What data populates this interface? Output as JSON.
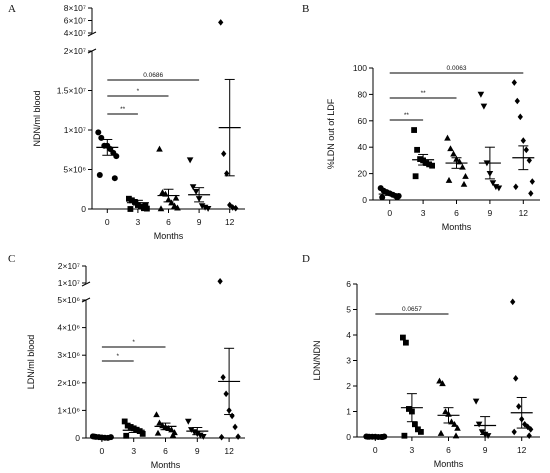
{
  "chart_data": [
    {
      "panel": "A",
      "type": "scatter",
      "xlabel": "Months",
      "ylabel": "NDN/ml blood",
      "categories": [
        "0",
        "3",
        "6",
        "9",
        "12"
      ],
      "yticks_main": [
        "0",
        "5×10⁶",
        "1×10⁷",
        "1.5×10⁷",
        "2×10⁷"
      ],
      "yticks_break": [
        "4×10⁷",
        "6×10⁷",
        "8×10⁷"
      ],
      "ylim_main": [
        0,
        20000000
      ],
      "ylim_break": [
        40000000,
        80000000
      ],
      "markers": [
        "circle",
        "square",
        "triangle-up",
        "triangle-down",
        "diamond"
      ],
      "points": [
        [
          9700000,
          9000000,
          8000000,
          8000000,
          7600000,
          7100000,
          6700000,
          4300000,
          3900000
        ],
        [
          1300000,
          1100000,
          900000,
          500000,
          300000,
          100000,
          50000,
          0,
          400000
        ],
        [
          7600000,
          2100000,
          1900000,
          1200000,
          800000,
          400000,
          150000,
          50000,
          1400000
        ],
        [
          6200000,
          2800000,
          2200000,
          1300000,
          400000,
          200000,
          50000
        ],
        [
          57000000,
          7000000,
          4500000,
          500000,
          200000,
          100000
        ]
      ],
      "mean": [
        7800000,
        800000,
        1700000,
        1800000,
        10300000
      ],
      "sem": [
        1000000,
        300000,
        800000,
        900000,
        6100000
      ],
      "comparisons": [
        {
          "from": "0",
          "to": "3",
          "label": "**"
        },
        {
          "from": "0",
          "to": "6",
          "label": "*"
        },
        {
          "from": "0",
          "to": "9",
          "label": "0.0686"
        }
      ]
    },
    {
      "panel": "B",
      "type": "scatter",
      "xlabel": "Months",
      "ylabel": "%LDN out of LDF",
      "categories": [
        "0",
        "3",
        "6",
        "9",
        "12"
      ],
      "yticks": [
        "0",
        "20",
        "40",
        "60",
        "80",
        "100"
      ],
      "ylim": [
        0,
        100
      ],
      "markers": [
        "circle",
        "square",
        "triangle-up",
        "triangle-down",
        "diamond"
      ],
      "points": [
        [
          9,
          7,
          6,
          5,
          4,
          3,
          3,
          2,
          2
        ],
        [
          53,
          38,
          31,
          30,
          28,
          27,
          26,
          18
        ],
        [
          47,
          39,
          35,
          31,
          29,
          25,
          18,
          15,
          12
        ],
        [
          80,
          71,
          28,
          20,
          13,
          10,
          9
        ],
        [
          89,
          75,
          63,
          45,
          38,
          30,
          14,
          10,
          5
        ]
      ],
      "mean": [
        4.5,
        30.5,
        28,
        28,
        32
      ],
      "sem": [
        1,
        4,
        4,
        12,
        9
      ],
      "comparisons": [
        {
          "from": "0",
          "to": "3",
          "label": "**"
        },
        {
          "from": "0",
          "to": "6",
          "label": "**"
        },
        {
          "from": "0",
          "to": "12",
          "label": "0.0063"
        }
      ]
    },
    {
      "panel": "C",
      "type": "scatter",
      "xlabel": "Months",
      "ylabel": "LDN/ml blood",
      "categories": [
        "0",
        "3",
        "6",
        "9",
        "12"
      ],
      "yticks_main": [
        "0",
        "1×10⁶",
        "2×10⁶",
        "3×10⁶",
        "4×10⁶",
        "5×10⁶"
      ],
      "yticks_break": [
        "1×10⁷",
        "2×10⁷"
      ],
      "ylim_main": [
        0,
        5000000
      ],
      "ylim_break": [
        10000000,
        20000000
      ],
      "markers": [
        "circle",
        "square",
        "triangle-up",
        "triangle-down",
        "diamond"
      ],
      "points": [
        [
          60000,
          40000,
          30000,
          20000,
          10000,
          5000,
          30000,
          50000
        ],
        [
          600000,
          450000,
          400000,
          350000,
          300000,
          250000,
          150000,
          80000
        ],
        [
          850000,
          550000,
          450000,
          400000,
          350000,
          300000,
          200000,
          180000,
          100000
        ],
        [
          600000,
          300000,
          220000,
          150000,
          100000,
          50000
        ],
        [
          11000000,
          2200000,
          1600000,
          1000000,
          800000,
          400000,
          50000,
          30000
        ]
      ],
      "mean": [
        30000,
        280000,
        420000,
        250000,
        2050000
      ],
      "sem": [
        10000,
        80000,
        120000,
        130000,
        1200000
      ],
      "comparisons": [
        {
          "from": "0",
          "to": "3",
          "label": "*"
        },
        {
          "from": "0",
          "to": "6",
          "label": "*"
        }
      ]
    },
    {
      "panel": "D",
      "type": "scatter",
      "xlabel": "Months",
      "ylabel": "LDN/NDN",
      "categories": [
        "0",
        "3",
        "6",
        "9",
        "12"
      ],
      "yticks": [
        "0",
        "1",
        "2",
        "3",
        "4",
        "5",
        "6"
      ],
      "ylim": [
        0,
        6
      ],
      "markers": [
        "circle",
        "square",
        "triangle-up",
        "triangle-down",
        "diamond"
      ],
      "points": [
        [
          0.02,
          0.01,
          0.01,
          0.01,
          0.0,
          0.0,
          0.02,
          0.01,
          0.0
        ],
        [
          3.9,
          3.7,
          1.1,
          1.0,
          0.5,
          0.3,
          0.2,
          0.05
        ],
        [
          2.2,
          2.1,
          1.0,
          0.9,
          0.6,
          0.5,
          0.35,
          0.15,
          0.05
        ],
        [
          1.4,
          0.5,
          0.2,
          0.1,
          0.05
        ],
        [
          5.3,
          2.3,
          1.2,
          0.7,
          0.5,
          0.4,
          0.3,
          0.2,
          0.05
        ]
      ],
      "mean": [
        0.01,
        1.15,
        0.85,
        0.45,
        0.95
      ],
      "sem": [
        0.005,
        0.55,
        0.3,
        0.35,
        0.6
      ],
      "comparisons": [
        {
          "from": "0",
          "to": "6",
          "label": "0.0657"
        }
      ]
    }
  ]
}
